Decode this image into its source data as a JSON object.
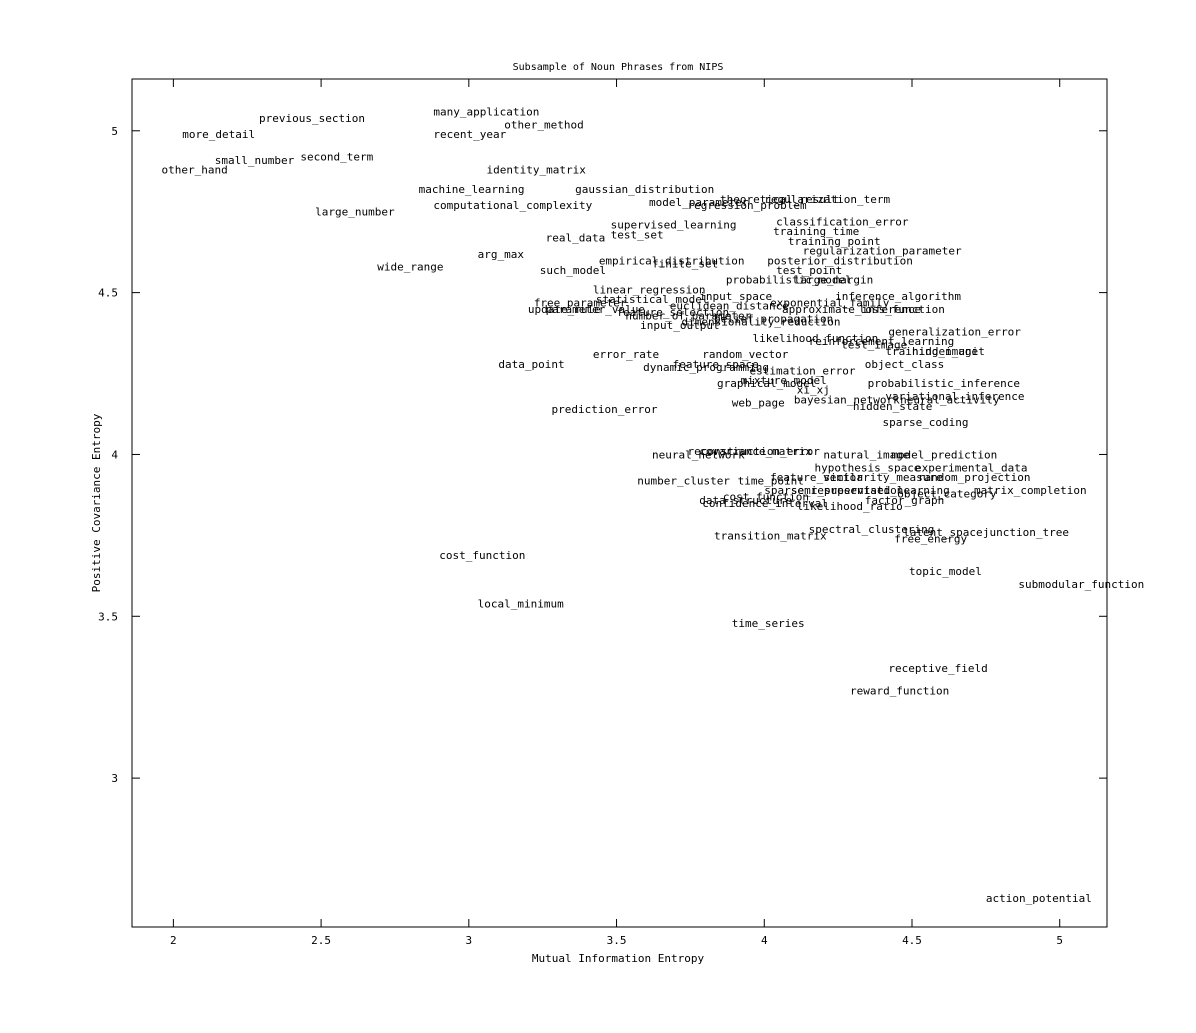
{
  "chart_data": {
    "type": "scatter",
    "title": "Subsample of Noun Phrases from NIPS",
    "xlabel": "Mutual Information Entropy",
    "ylabel": "Positive Covariance Entropy",
    "xlim": [
      1.86,
      5.16
    ],
    "ylim": [
      2.54,
      5.16
    ],
    "xticks": [
      2,
      2.5,
      3,
      3.5,
      4,
      4.5,
      5
    ],
    "xtick_labels": [
      "2",
      "2.5",
      "3",
      "3.5",
      "4",
      "4.5",
      "5"
    ],
    "yticks": [
      3,
      3.5,
      4,
      4.5,
      5
    ],
    "ytick_labels": [
      "3",
      "3.5",
      "4",
      "4.5",
      "5"
    ],
    "grid": false,
    "marker": "text-label",
    "points": [
      {
        "label": "previous_section",
        "x": 2.29,
        "y": 5.04
      },
      {
        "label": "many_application",
        "x": 2.88,
        "y": 5.06
      },
      {
        "label": "other_method",
        "x": 3.12,
        "y": 5.02
      },
      {
        "label": "more_detail",
        "x": 2.03,
        "y": 4.99
      },
      {
        "label": "recent_year",
        "x": 2.88,
        "y": 4.99
      },
      {
        "label": "second_term",
        "x": 2.43,
        "y": 4.92
      },
      {
        "label": "small_number",
        "x": 2.14,
        "y": 4.91
      },
      {
        "label": "other_hand",
        "x": 1.96,
        "y": 4.88
      },
      {
        "label": "identity_matrix",
        "x": 3.06,
        "y": 4.88
      },
      {
        "label": "machine_learning",
        "x": 2.83,
        "y": 4.82
      },
      {
        "label": "gaussian_distribution",
        "x": 3.36,
        "y": 4.82
      },
      {
        "label": "computational_complexity",
        "x": 2.88,
        "y": 4.77
      },
      {
        "label": "model_parameter",
        "x": 3.61,
        "y": 4.78
      },
      {
        "label": "theoretical_result",
        "x": 3.85,
        "y": 4.79
      },
      {
        "label": "regularization_term",
        "x": 4.0,
        "y": 4.79
      },
      {
        "label": "regression_problem",
        "x": 3.74,
        "y": 4.77
      },
      {
        "label": "large_number",
        "x": 2.48,
        "y": 4.75
      },
      {
        "label": "classification_error",
        "x": 4.04,
        "y": 4.72
      },
      {
        "label": "supervised_learning",
        "x": 3.48,
        "y": 4.71
      },
      {
        "label": "training_time",
        "x": 4.03,
        "y": 4.69
      },
      {
        "label": "test_set",
        "x": 3.48,
        "y": 4.68
      },
      {
        "label": "real_data",
        "x": 3.26,
        "y": 4.67
      },
      {
        "label": "training_point",
        "x": 4.08,
        "y": 4.66
      },
      {
        "label": "regularization_parameter",
        "x": 4.13,
        "y": 4.63
      },
      {
        "label": "arg_max",
        "x": 3.03,
        "y": 4.62
      },
      {
        "label": "empirical_distribution",
        "x": 3.44,
        "y": 4.6
      },
      {
        "label": "posterior_distribution",
        "x": 4.01,
        "y": 4.6
      },
      {
        "label": "finite_set",
        "x": 3.62,
        "y": 4.59
      },
      {
        "label": "wide_range",
        "x": 2.69,
        "y": 4.58
      },
      {
        "label": "such_model",
        "x": 3.24,
        "y": 4.57
      },
      {
        "label": "test_point",
        "x": 4.04,
        "y": 4.57
      },
      {
        "label": "probabilistic_model",
        "x": 3.87,
        "y": 4.54
      },
      {
        "label": "large_margin",
        "x": 4.1,
        "y": 4.54
      },
      {
        "label": "linear_regression",
        "x": 3.42,
        "y": 4.51
      },
      {
        "label": "input_space",
        "x": 3.78,
        "y": 4.49
      },
      {
        "label": "inference_algorithm",
        "x": 4.24,
        "y": 4.49
      },
      {
        "label": "statistical_model",
        "x": 3.43,
        "y": 4.48
      },
      {
        "label": "free_parameter",
        "x": 3.22,
        "y": 4.47
      },
      {
        "label": "euclidean_distance",
        "x": 3.68,
        "y": 4.46
      },
      {
        "label": "exponential_family",
        "x": 4.02,
        "y": 4.47
      },
      {
        "label": "approximate_inference",
        "x": 4.06,
        "y": 4.45
      },
      {
        "label": "update_rule",
        "x": 3.2,
        "y": 4.45
      },
      {
        "label": "parameter_value",
        "x": 3.26,
        "y": 4.45
      },
      {
        "label": "feature_selection",
        "x": 3.5,
        "y": 4.44
      },
      {
        "label": "number_of_parameter",
        "x": 3.53,
        "y": 4.43
      },
      {
        "label": "belief_propagation",
        "x": 3.83,
        "y": 4.42
      },
      {
        "label": "loss_function",
        "x": 4.32,
        "y": 4.45
      },
      {
        "label": "input_output",
        "x": 3.58,
        "y": 4.4
      },
      {
        "label": "dimensionality_reduction",
        "x": 3.72,
        "y": 4.41
      },
      {
        "label": "generalization_error",
        "x": 4.42,
        "y": 4.38
      },
      {
        "label": "likelihood_function",
        "x": 3.96,
        "y": 4.36
      },
      {
        "label": "reinforcement_learning",
        "x": 4.15,
        "y": 4.35
      },
      {
        "label": "test_image",
        "x": 4.26,
        "y": 4.34
      },
      {
        "label": "training_image",
        "x": 4.41,
        "y": 4.32
      },
      {
        "label": "hidden_unit",
        "x": 4.5,
        "y": 4.32
      },
      {
        "label": "error_rate",
        "x": 3.42,
        "y": 4.31
      },
      {
        "label": "random_vector",
        "x": 3.79,
        "y": 4.31
      },
      {
        "label": "data_point",
        "x": 3.1,
        "y": 4.28
      },
      {
        "label": "feature_space",
        "x": 3.69,
        "y": 4.28
      },
      {
        "label": "dynamic_programming",
        "x": 3.59,
        "y": 4.27
      },
      {
        "label": "object_class",
        "x": 4.34,
        "y": 4.28
      },
      {
        "label": "estimation_error",
        "x": 3.95,
        "y": 4.26
      },
      {
        "label": "mixture_model",
        "x": 3.92,
        "y": 4.23
      },
      {
        "label": "graphical_model",
        "x": 3.84,
        "y": 4.22
      },
      {
        "label": "probabilistic_inference",
        "x": 4.35,
        "y": 4.22
      },
      {
        "label": "xi_xj",
        "x": 4.11,
        "y": 4.2
      },
      {
        "label": "variational_inference",
        "x": 4.41,
        "y": 4.18
      },
      {
        "label": "neural_activity",
        "x": 4.46,
        "y": 4.17
      },
      {
        "label": "bayesian_network",
        "x": 4.1,
        "y": 4.17
      },
      {
        "label": "web_page",
        "x": 3.89,
        "y": 4.16
      },
      {
        "label": "hidden_state",
        "x": 4.3,
        "y": 4.15
      },
      {
        "label": "prediction_error",
        "x": 3.28,
        "y": 4.14
      },
      {
        "label": "sparse_coding",
        "x": 4.4,
        "y": 4.1
      },
      {
        "label": "reconstruction_error",
        "x": 3.74,
        "y": 4.01
      },
      {
        "label": "covariance_matrix",
        "x": 3.78,
        "y": 4.01
      },
      {
        "label": "neural_network",
        "x": 3.62,
        "y": 4.0
      },
      {
        "label": "natural_image",
        "x": 4.2,
        "y": 4.0
      },
      {
        "label": "model_prediction",
        "x": 4.43,
        "y": 4.0
      },
      {
        "label": "hypothesis_space",
        "x": 4.17,
        "y": 3.96
      },
      {
        "label": "experimental_data",
        "x": 4.51,
        "y": 3.96
      },
      {
        "label": "feature_vector",
        "x": 4.02,
        "y": 3.93
      },
      {
        "label": "similarity_measure",
        "x": 4.2,
        "y": 3.93
      },
      {
        "label": "random_projection",
        "x": 4.52,
        "y": 3.93
      },
      {
        "label": "number_cluster",
        "x": 3.57,
        "y": 3.92
      },
      {
        "label": "time_point",
        "x": 3.91,
        "y": 3.92
      },
      {
        "label": "sparse_representation",
        "x": 4.0,
        "y": 3.89
      },
      {
        "label": "semi_supervised_learning",
        "x": 4.09,
        "y": 3.89
      },
      {
        "label": "object_category",
        "x": 4.45,
        "y": 3.88
      },
      {
        "label": "matrix_completion",
        "x": 4.71,
        "y": 3.89
      },
      {
        "label": "cost_function",
        "x": 3.86,
        "y": 3.87
      },
      {
        "label": "data_structure",
        "x": 3.78,
        "y": 3.86
      },
      {
        "label": "factor_graph",
        "x": 4.34,
        "y": 3.86
      },
      {
        "label": "confidence_interval",
        "x": 3.79,
        "y": 3.85
      },
      {
        "label": "likelihood_ratio",
        "x": 4.11,
        "y": 3.84
      },
      {
        "label": "spectral_clustering",
        "x": 4.15,
        "y": 3.77
      },
      {
        "label": "latent_space",
        "x": 4.47,
        "y": 3.76
      },
      {
        "label": "junction_tree",
        "x": 4.74,
        "y": 3.76
      },
      {
        "label": "transition_matrix",
        "x": 3.83,
        "y": 3.75
      },
      {
        "label": "free_energy",
        "x": 4.44,
        "y": 3.74
      },
      {
        "label": "cost_function",
        "x": 2.9,
        "y": 3.69
      },
      {
        "label": "topic_model",
        "x": 4.49,
        "y": 3.64
      },
      {
        "label": "submodular_function",
        "x": 4.86,
        "y": 3.6
      },
      {
        "label": "local_minimum",
        "x": 3.03,
        "y": 3.54
      },
      {
        "label": "time_series",
        "x": 3.89,
        "y": 3.48
      },
      {
        "label": "receptive_field",
        "x": 4.42,
        "y": 3.34
      },
      {
        "label": "reward_function",
        "x": 4.29,
        "y": 3.27
      },
      {
        "label": "action_potential",
        "x": 4.75,
        "y": 2.63
      }
    ]
  }
}
